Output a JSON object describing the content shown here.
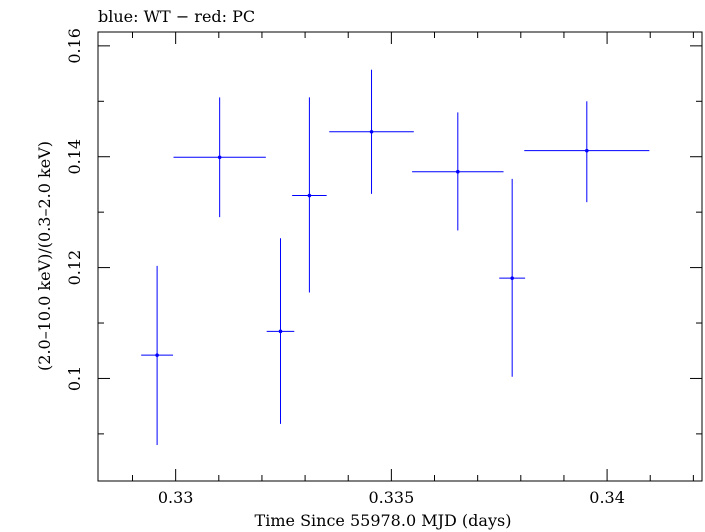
{
  "chart_data": {
    "type": "scatter",
    "title": "blue: WT − red: PC",
    "xlabel": "Time Since 55978.0 MJD (days)",
    "ylabel": "(2.0–10.0 keV)/(0.3–2.0 keV)",
    "xlim": [
      0.3282,
      0.3422
    ],
    "ylim": [
      0.0815,
      0.1625
    ],
    "x_ticks": [
      0.33,
      0.335,
      0.34
    ],
    "x_tick_labels": [
      "0.33",
      "0.335",
      "0.34"
    ],
    "y_ticks": [
      0.1,
      0.12,
      0.14,
      0.16
    ],
    "y_tick_labels": [
      "0.1",
      "0.12",
      "0.14",
      "0.16"
    ],
    "grid": false,
    "series": [
      {
        "color": "#0000ff",
        "points": [
          {
            "x": 0.32957,
            "y": 0.1042,
            "xerr": 0.00037,
            "ylo": 0.088,
            "yhi": 0.1203
          },
          {
            "x": 0.33102,
            "y": 0.1399,
            "xerr": 0.00107,
            "ylo": 0.1291,
            "yhi": 0.1507
          },
          {
            "x": 0.33243,
            "y": 0.1085,
            "xerr": 0.00032,
            "ylo": 0.0918,
            "yhi": 0.1253
          },
          {
            "x": 0.3331,
            "y": 0.133,
            "xerr": 0.0004,
            "ylo": 0.1155,
            "yhi": 0.1507
          },
          {
            "x": 0.33454,
            "y": 0.1445,
            "xerr": 0.00098,
            "ylo": 0.1333,
            "yhi": 0.1557
          },
          {
            "x": 0.33654,
            "y": 0.1373,
            "xerr": 0.00106,
            "ylo": 0.1267,
            "yhi": 0.148
          },
          {
            "x": 0.3378,
            "y": 0.1181,
            "xerr": 0.0003,
            "ylo": 0.1003,
            "yhi": 0.136
          },
          {
            "x": 0.33953,
            "y": 0.1411,
            "xerr": 0.00145,
            "ylo": 0.1318,
            "yhi": 0.15
          }
        ]
      }
    ]
  }
}
